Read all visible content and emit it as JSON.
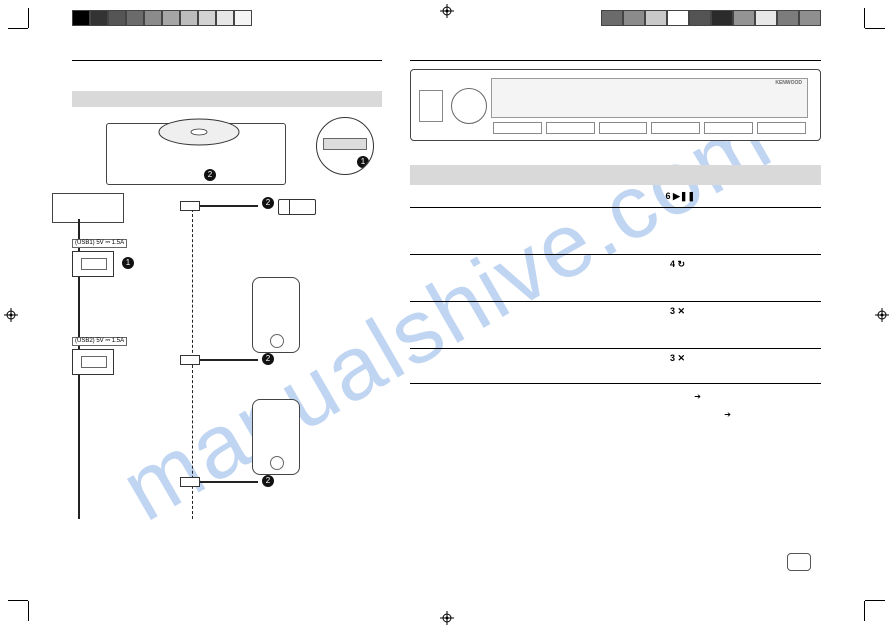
{
  "watermark": "manualshive.com",
  "colorbar": {
    "left_widths": [
      16,
      16,
      16,
      16,
      16,
      16,
      16,
      16,
      16,
      16
    ],
    "right_widths": [
      20,
      20,
      20,
      20,
      20,
      20,
      20,
      20,
      20,
      20
    ],
    "left_colors": [
      "#000000",
      "#333333",
      "#555555",
      "#6b6b6b",
      "#8b8b8b",
      "#a5a5a5",
      "#bcbcbc",
      "#d2d2d2",
      "#e6e6e6",
      "#f5f5f5"
    ],
    "right_colors": [
      "#6b6b6b",
      "#8b8b8b",
      "#c9c9c9",
      "#ffffff",
      "#545454",
      "#2b2b2b",
      "#949494",
      "#e8e8e8",
      "#7c7c7c",
      "#8f8f8f"
    ]
  },
  "left": {
    "usb1_label": "(USB1) 5V ⎓ 1.5A",
    "usb2_label": "(USB2) 5V ⎓ 1.5A",
    "badge1": "1",
    "badge2a": "2",
    "badge2b": "2",
    "badge2c": "2"
  },
  "right": {
    "radio_brand": "KENWOOD",
    "row_playpause": "6 ▶❚❚",
    "row_repeat": "4 ↻",
    "row_shuffle1": "3 ✕",
    "row_shuffle2": "3 ✕",
    "arrow_small": "➔",
    "arrow_small2": "➔"
  }
}
